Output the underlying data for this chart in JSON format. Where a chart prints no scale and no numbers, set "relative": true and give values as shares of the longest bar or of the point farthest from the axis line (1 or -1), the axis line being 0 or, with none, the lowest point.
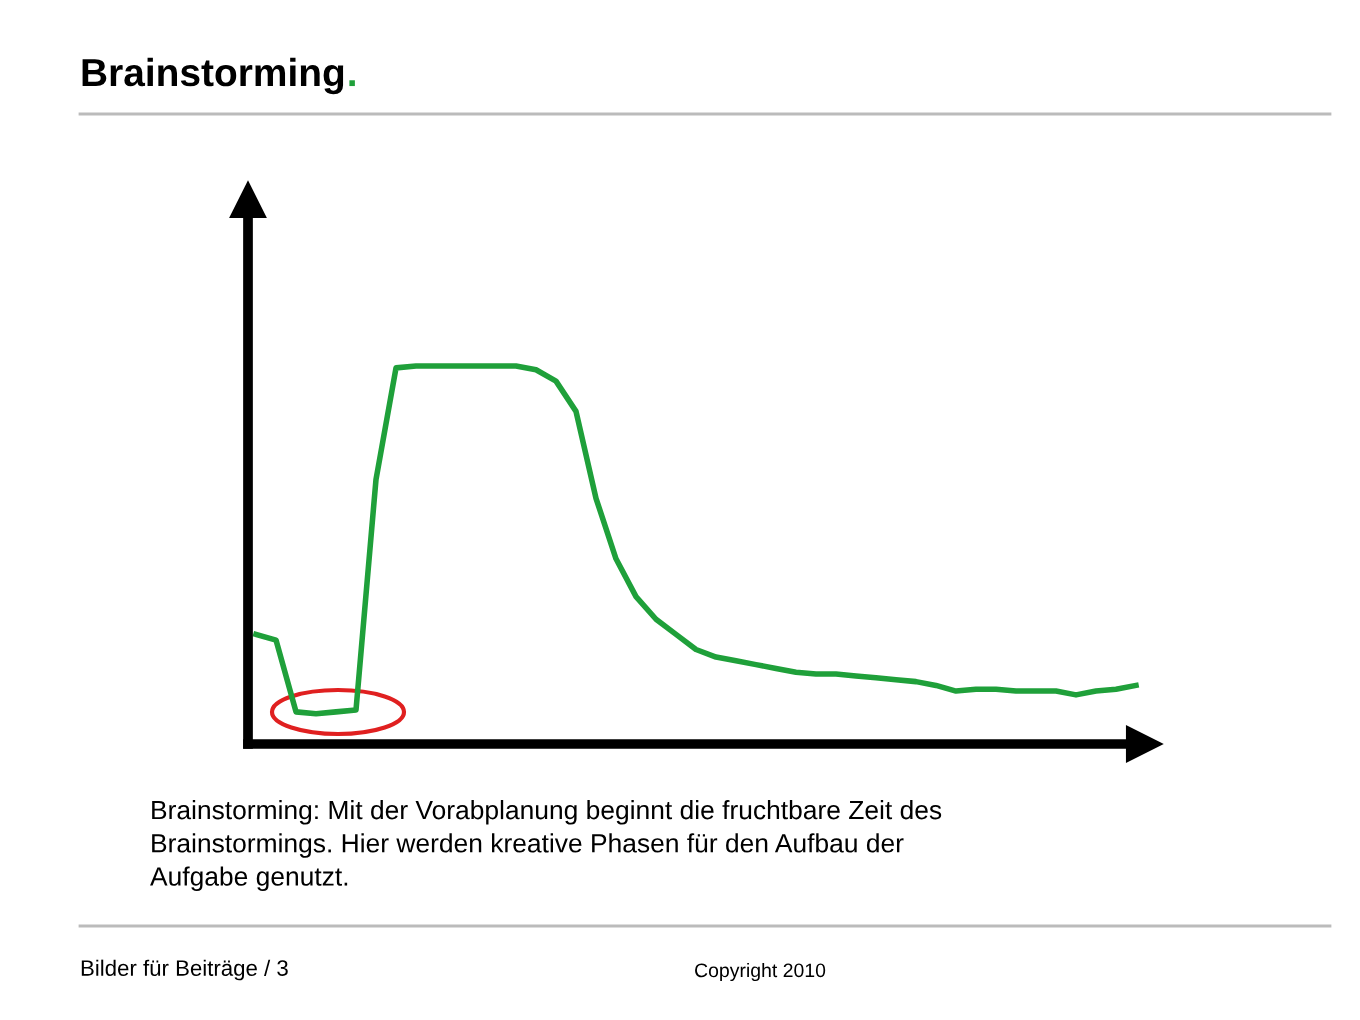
{
  "chart_data": {
    "type": "line",
    "relative": true,
    "title": "Brainstorming.",
    "categories": [
      null,
      null,
      null,
      null,
      null,
      null,
      null,
      null,
      null,
      null,
      null,
      null,
      null,
      null,
      null,
      null,
      null,
      null,
      null,
      null,
      null,
      null,
      null,
      null,
      null,
      null,
      null,
      null,
      null,
      null,
      null,
      null,
      null,
      null,
      null,
      null,
      null,
      null,
      null,
      null,
      null,
      null,
      null,
      null,
      null
    ],
    "series": [
      {
        "color": "#1fa03a",
        "values": [
          0.29,
          0.275,
          0.085,
          0.08,
          0.085,
          0.09,
          0.7,
          0.995,
          1,
          1,
          1,
          1,
          1,
          1,
          0.99,
          0.96,
          0.88,
          0.65,
          0.49,
          0.39,
          0.33,
          0.29,
          0.25,
          0.23,
          0.22,
          0.21,
          0.2,
          0.19,
          0.185,
          0.185,
          0.18,
          0.175,
          0.17,
          0.165,
          0.155,
          0.14,
          0.145,
          0.145,
          0.14,
          0.14,
          0.14,
          0.13,
          0.14,
          0.145,
          0.155
        ]
      }
    ],
    "annotations": [
      "Brainstorming: Mit der Vorabplanung beginnt die fruchtbare Zeit des\nBrainstormings. Hier werden kreative Phasen für den Aufbau der\nAufgabe genutzt.",
      "Bilder für Beiträge / 3",
      "Copyright 2010"
    ]
  }
}
